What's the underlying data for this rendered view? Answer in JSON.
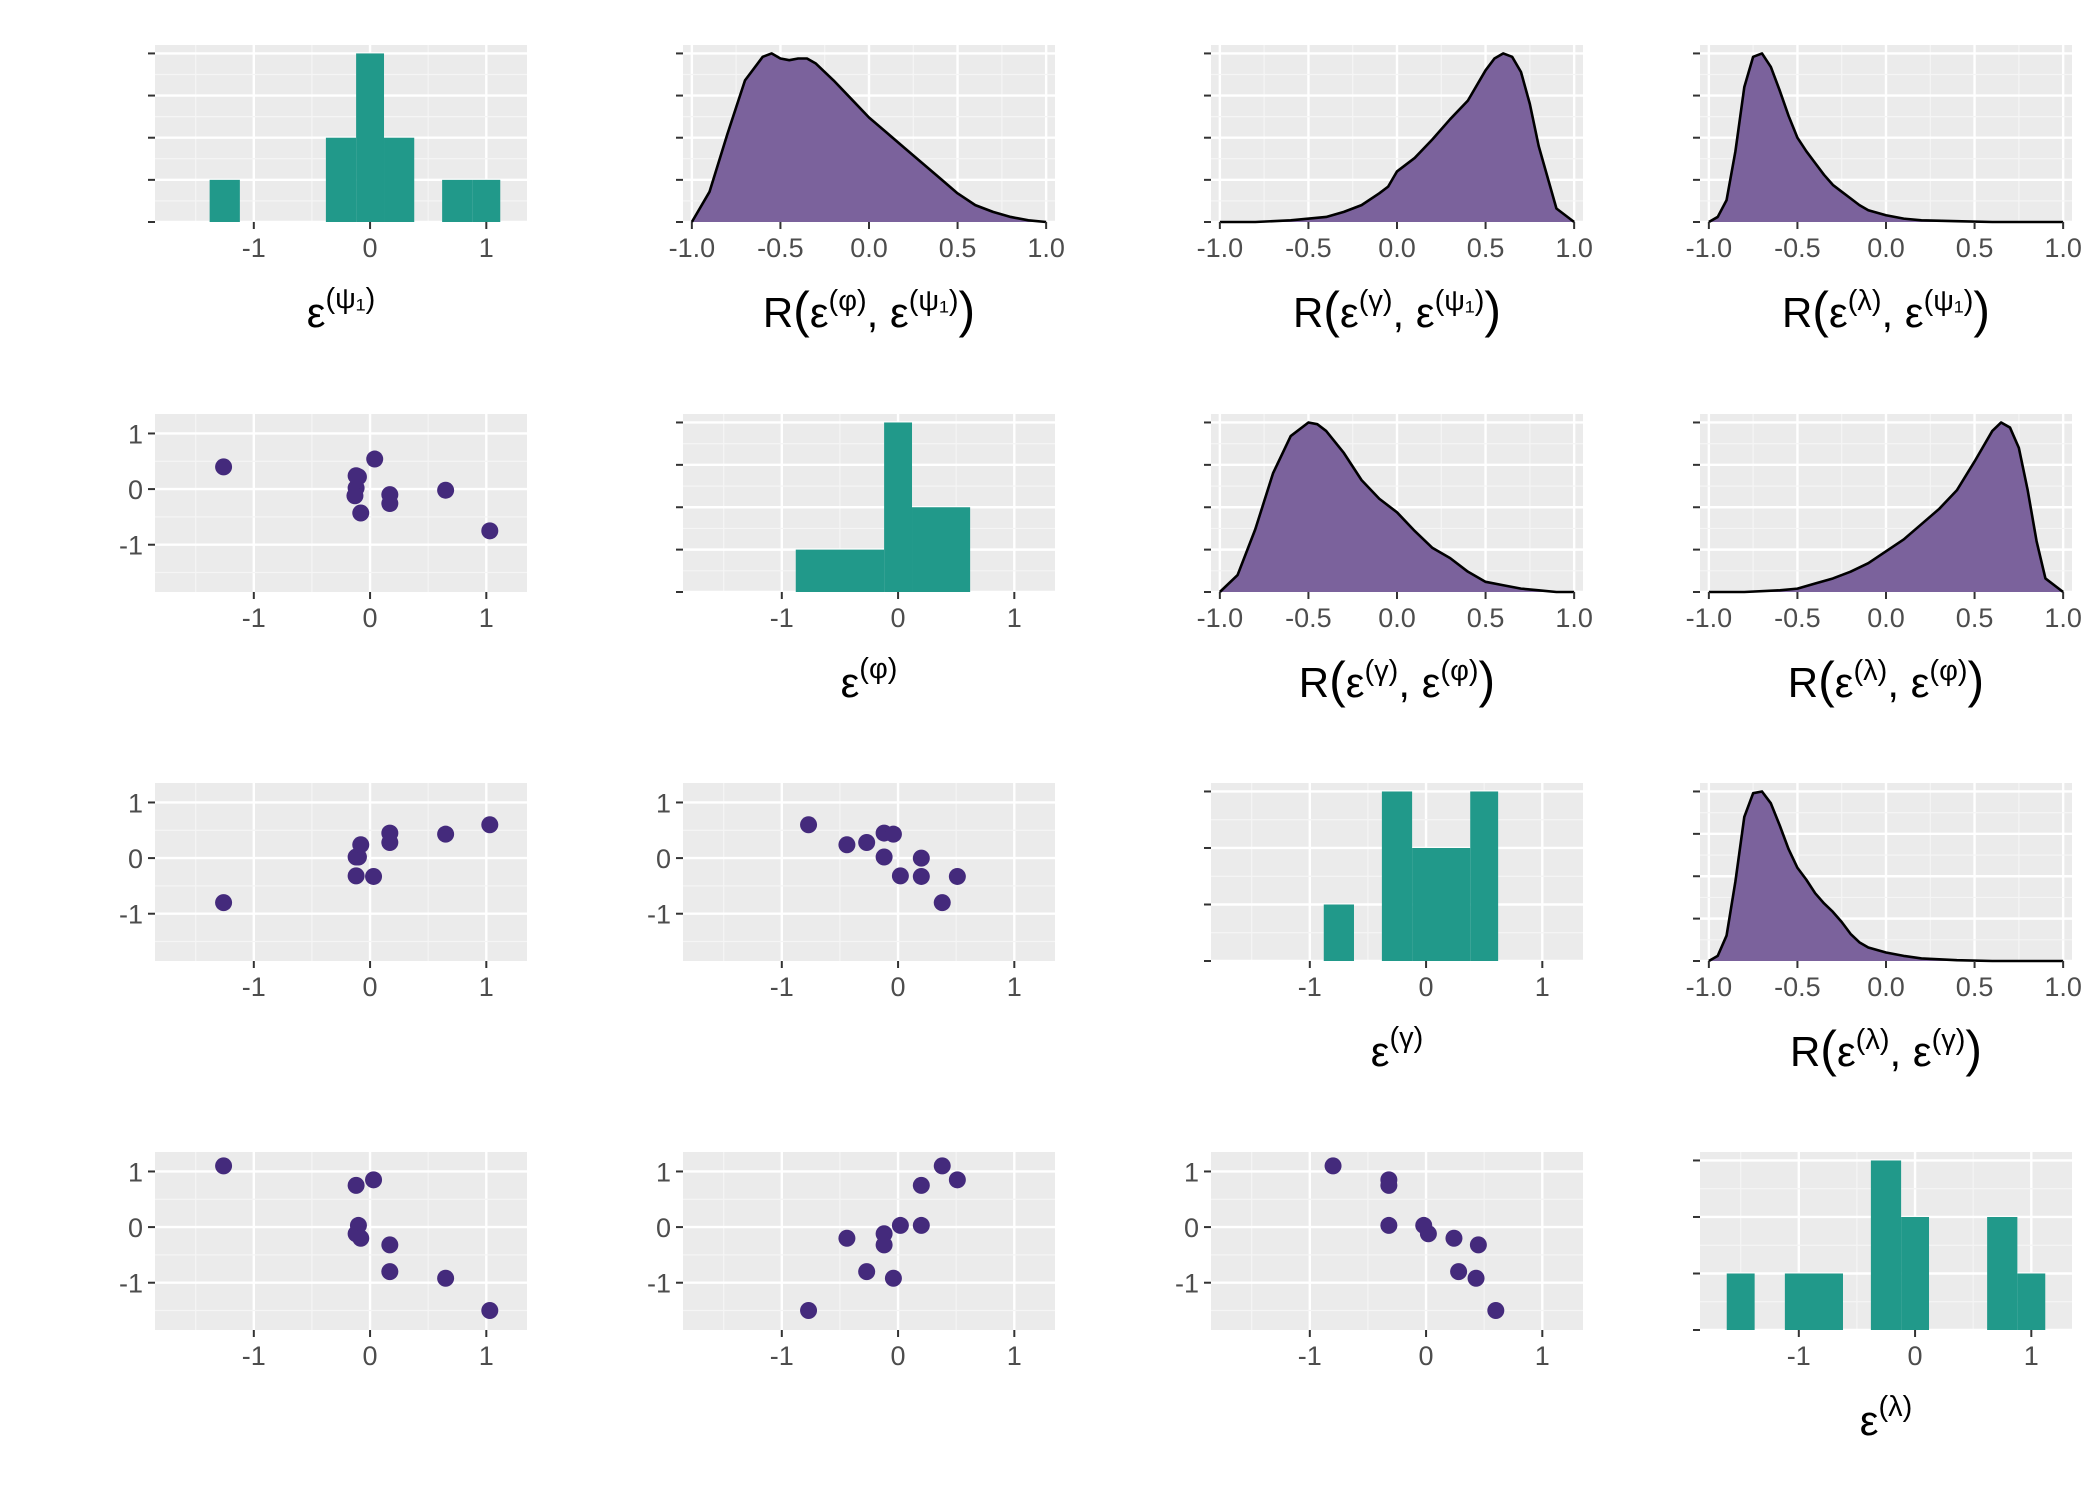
{
  "colors": {
    "panel_bg": "#ebebeb",
    "grid_major": "#ffffff",
    "grid_minor": "#f5f5f5",
    "hist_fill": "#21998a",
    "density_fill": "#7b629c",
    "density_line": "#000000",
    "point": "#442a7c",
    "tick_text": "#4d4d4d",
    "label_text": "#000000"
  },
  "chart_data": [
    {
      "type": "bar",
      "id": "hist-psi1",
      "row": 0,
      "col": 0,
      "xlabel": "ε^(ψ₁)",
      "xlabel_base": "ε",
      "xlabel_sup": "(ψ₁)",
      "xlim": [
        -1.85,
        1.35
      ],
      "x_ticks": [
        -1,
        0,
        1
      ],
      "ylim": [
        0,
        4.2
      ],
      "grid": true,
      "bins": [
        {
          "x0": -1.38,
          "x1": -1.12,
          "count": 1
        },
        {
          "x0": -0.38,
          "x1": -0.12,
          "count": 2
        },
        {
          "x0": -0.12,
          "x1": 0.12,
          "count": 4
        },
        {
          "x0": 0.12,
          "x1": 0.38,
          "count": 2
        },
        {
          "x0": 0.62,
          "x1": 0.88,
          "count": 1
        },
        {
          "x0": 0.88,
          "x1": 1.12,
          "count": 1
        }
      ]
    },
    {
      "type": "area",
      "id": "density-phi-psi1",
      "row": 0,
      "col": 1,
      "xlabel": "R(ε^(φ), ε^(ψ₁))",
      "xlabel_parts": [
        "R",
        "ε",
        "(φ)",
        "ε",
        "(ψ₁)"
      ],
      "xlim": [
        -1.05,
        1.05
      ],
      "x_ticks": [
        -1.0,
        -0.5,
        0.0,
        0.5,
        1.0
      ],
      "x_tick_labels": [
        "-1.0",
        "-0.5",
        "0.0",
        "0.5",
        "1.0"
      ],
      "ylim": [
        0,
        1.05
      ],
      "grid": true,
      "x": [
        -1.0,
        -0.9,
        -0.8,
        -0.7,
        -0.6,
        -0.55,
        -0.5,
        -0.45,
        -0.4,
        -0.35,
        -0.3,
        -0.2,
        -0.1,
        0.0,
        0.1,
        0.2,
        0.3,
        0.4,
        0.5,
        0.6,
        0.7,
        0.8,
        0.9,
        1.0
      ],
      "y": [
        0.0,
        0.18,
        0.52,
        0.84,
        0.98,
        1.0,
        0.97,
        0.96,
        0.97,
        0.97,
        0.94,
        0.84,
        0.73,
        0.62,
        0.53,
        0.44,
        0.35,
        0.26,
        0.17,
        0.1,
        0.06,
        0.03,
        0.01,
        0.0
      ]
    },
    {
      "type": "area",
      "id": "density-gamma-psi1",
      "row": 0,
      "col": 2,
      "xlabel": "R(ε^(γ), ε^(ψ₁))",
      "xlabel_parts": [
        "R",
        "ε",
        "(γ)",
        "ε",
        "(ψ₁)"
      ],
      "xlim": [
        -1.05,
        1.05
      ],
      "x_ticks": [
        -1.0,
        -0.5,
        0.0,
        0.5,
        1.0
      ],
      "x_tick_labels": [
        "-1.0",
        "-0.5",
        "0.0",
        "0.5",
        "1.0"
      ],
      "ylim": [
        0,
        1.05
      ],
      "grid": true,
      "x": [
        -1.0,
        -0.8,
        -0.6,
        -0.4,
        -0.3,
        -0.2,
        -0.1,
        -0.05,
        0.0,
        0.1,
        0.2,
        0.3,
        0.4,
        0.5,
        0.55,
        0.6,
        0.65,
        0.7,
        0.75,
        0.8,
        0.9,
        1.0
      ],
      "y": [
        0.0,
        0.0,
        0.01,
        0.03,
        0.06,
        0.1,
        0.17,
        0.21,
        0.3,
        0.38,
        0.49,
        0.61,
        0.72,
        0.9,
        0.97,
        1.0,
        0.98,
        0.89,
        0.7,
        0.45,
        0.08,
        0.0
      ]
    },
    {
      "type": "area",
      "id": "density-lambda-psi1",
      "row": 0,
      "col": 3,
      "xlabel": "R(ε^(λ), ε^(ψ₁))",
      "xlabel_parts": [
        "R",
        "ε",
        "(λ)",
        "ε",
        "(ψ₁)"
      ],
      "xlim": [
        -1.05,
        1.05
      ],
      "x_ticks": [
        -1.0,
        -0.5,
        0.0,
        0.5,
        1.0
      ],
      "x_tick_labels": [
        "-1.0",
        "-0.5",
        "0.0",
        "0.5",
        "1.0"
      ],
      "ylim": [
        0,
        1.05
      ],
      "grid": true,
      "x": [
        -1.0,
        -0.95,
        -0.9,
        -0.85,
        -0.8,
        -0.75,
        -0.7,
        -0.65,
        -0.6,
        -0.55,
        -0.5,
        -0.45,
        -0.4,
        -0.35,
        -0.3,
        -0.25,
        -0.2,
        -0.15,
        -0.1,
        0.0,
        0.1,
        0.2,
        0.4,
        0.6,
        0.8,
        1.0
      ],
      "y": [
        0.0,
        0.03,
        0.13,
        0.42,
        0.8,
        0.98,
        1.0,
        0.92,
        0.78,
        0.63,
        0.5,
        0.42,
        0.35,
        0.28,
        0.22,
        0.18,
        0.14,
        0.1,
        0.07,
        0.04,
        0.02,
        0.01,
        0.005,
        0.0,
        0.0,
        0.0
      ]
    },
    {
      "type": "scatter",
      "id": "scatter-psi1-phi",
      "row": 1,
      "col": 0,
      "xlim": [
        -1.85,
        1.35
      ],
      "ylim": [
        -1.85,
        1.35
      ],
      "x_ticks": [
        -1,
        0,
        1
      ],
      "y_ticks": [
        -1,
        0,
        1
      ],
      "grid": true,
      "points": [
        {
          "x": -1.26,
          "y": 0.4
        },
        {
          "x": -0.12,
          "y": 0.24
        },
        {
          "x": -0.1,
          "y": 0.22
        },
        {
          "x": -0.12,
          "y": 0.02
        },
        {
          "x": -0.13,
          "y": -0.12
        },
        {
          "x": -0.08,
          "y": -0.43
        },
        {
          "x": 0.04,
          "y": 0.54
        },
        {
          "x": 0.17,
          "y": -0.1
        },
        {
          "x": 0.17,
          "y": -0.26
        },
        {
          "x": 0.65,
          "y": -0.02
        },
        {
          "x": 1.03,
          "y": -0.75
        }
      ]
    },
    {
      "type": "bar",
      "id": "hist-phi",
      "row": 1,
      "col": 1,
      "xlabel": "ε^(φ)",
      "xlabel_base": "ε",
      "xlabel_sup": "(φ)",
      "xlim": [
        -1.85,
        1.35
      ],
      "x_ticks": [
        -1,
        0,
        1
      ],
      "ylim": [
        0,
        4.2
      ],
      "grid": true,
      "bins": [
        {
          "x0": -0.88,
          "x1": -0.12,
          "count": 1
        },
        {
          "x0": -0.12,
          "x1": 0.12,
          "count": 4
        },
        {
          "x0": 0.12,
          "x1": 0.62,
          "count": 2
        }
      ]
    },
    {
      "type": "area",
      "id": "density-gamma-phi",
      "row": 1,
      "col": 2,
      "xlabel": "R(ε^(γ), ε^(φ))",
      "xlabel_parts": [
        "R",
        "ε",
        "(γ)",
        "ε",
        "(φ)"
      ],
      "xlim": [
        -1.05,
        1.05
      ],
      "x_ticks": [
        -1.0,
        -0.5,
        0.0,
        0.5,
        1.0
      ],
      "x_tick_labels": [
        "-1.0",
        "-0.5",
        "0.0",
        "0.5",
        "1.0"
      ],
      "ylim": [
        0,
        1.05
      ],
      "grid": true,
      "x": [
        -1.0,
        -0.9,
        -0.8,
        -0.7,
        -0.6,
        -0.5,
        -0.45,
        -0.4,
        -0.3,
        -0.2,
        -0.1,
        0.0,
        0.1,
        0.2,
        0.3,
        0.4,
        0.5,
        0.6,
        0.7,
        0.8,
        0.9,
        1.0
      ],
      "y": [
        0.0,
        0.1,
        0.37,
        0.7,
        0.92,
        1.0,
        0.99,
        0.95,
        0.82,
        0.66,
        0.55,
        0.47,
        0.36,
        0.26,
        0.2,
        0.12,
        0.06,
        0.04,
        0.02,
        0.01,
        0.0,
        0.0
      ]
    },
    {
      "type": "area",
      "id": "density-lambda-phi",
      "row": 1,
      "col": 3,
      "xlabel": "R(ε^(λ), ε^(φ))",
      "xlabel_parts": [
        "R",
        "ε",
        "(λ)",
        "ε",
        "(φ)"
      ],
      "xlim": [
        -1.05,
        1.05
      ],
      "x_ticks": [
        -1.0,
        -0.5,
        0.0,
        0.5,
        1.0
      ],
      "x_tick_labels": [
        "-1.0",
        "-0.5",
        "0.0",
        "0.5",
        "1.0"
      ],
      "ylim": [
        0,
        1.05
      ],
      "grid": true,
      "x": [
        -1.0,
        -0.8,
        -0.6,
        -0.5,
        -0.4,
        -0.3,
        -0.2,
        -0.1,
        0.0,
        0.1,
        0.2,
        0.3,
        0.4,
        0.5,
        0.6,
        0.65,
        0.7,
        0.75,
        0.8,
        0.85,
        0.9,
        1.0
      ],
      "y": [
        0.0,
        0.0,
        0.01,
        0.02,
        0.05,
        0.08,
        0.12,
        0.17,
        0.24,
        0.31,
        0.4,
        0.49,
        0.6,
        0.77,
        0.95,
        1.0,
        0.97,
        0.85,
        0.6,
        0.3,
        0.08,
        0.0
      ]
    },
    {
      "type": "scatter",
      "id": "scatter-psi1-gamma",
      "row": 2,
      "col": 0,
      "xlim": [
        -1.85,
        1.35
      ],
      "ylim": [
        -1.85,
        1.35
      ],
      "x_ticks": [
        -1,
        0,
        1
      ],
      "y_ticks": [
        -1,
        0,
        1
      ],
      "grid": true,
      "points": [
        {
          "x": -1.26,
          "y": -0.8
        },
        {
          "x": -0.12,
          "y": 0.02
        },
        {
          "x": -0.1,
          "y": 0.02
        },
        {
          "x": -0.08,
          "y": 0.24
        },
        {
          "x": -0.12,
          "y": -0.32
        },
        {
          "x": 0.03,
          "y": -0.33
        },
        {
          "x": 0.17,
          "y": 0.45
        },
        {
          "x": 0.17,
          "y": 0.28
        },
        {
          "x": 0.65,
          "y": 0.43
        },
        {
          "x": 1.03,
          "y": 0.6
        }
      ]
    },
    {
      "type": "scatter",
      "id": "scatter-phi-gamma",
      "row": 2,
      "col": 1,
      "xlim": [
        -1.85,
        1.35
      ],
      "ylim": [
        -1.85,
        1.35
      ],
      "x_ticks": [
        -1,
        0,
        1
      ],
      "y_ticks": [
        -1,
        0,
        1
      ],
      "grid": true,
      "points": [
        {
          "x": -0.77,
          "y": 0.6
        },
        {
          "x": -0.44,
          "y": 0.24
        },
        {
          "x": -0.27,
          "y": 0.28
        },
        {
          "x": -0.12,
          "y": 0.45
        },
        {
          "x": -0.04,
          "y": 0.43
        },
        {
          "x": -0.12,
          "y": 0.02
        },
        {
          "x": 0.02,
          "y": -0.32
        },
        {
          "x": 0.2,
          "y": 0.0
        },
        {
          "x": 0.2,
          "y": -0.33
        },
        {
          "x": 0.38,
          "y": -0.8
        },
        {
          "x": 0.51,
          "y": -0.33
        }
      ]
    },
    {
      "type": "bar",
      "id": "hist-gamma",
      "row": 2,
      "col": 2,
      "xlabel": "ε^(γ)",
      "xlabel_base": "ε",
      "xlabel_sup": "(γ)",
      "xlim": [
        -1.85,
        1.35
      ],
      "x_ticks": [
        -1,
        0,
        1
      ],
      "ylim": [
        0,
        3.15
      ],
      "grid": true,
      "bins": [
        {
          "x0": -0.88,
          "x1": -0.62,
          "count": 1
        },
        {
          "x0": -0.38,
          "x1": -0.12,
          "count": 3
        },
        {
          "x0": -0.12,
          "x1": 0.38,
          "count": 2
        },
        {
          "x0": 0.38,
          "x1": 0.62,
          "count": 3
        }
      ]
    },
    {
      "type": "area",
      "id": "density-lambda-gamma",
      "row": 2,
      "col": 3,
      "xlabel": "R(ε^(λ), ε^(γ))",
      "xlabel_parts": [
        "R",
        "ε",
        "(λ)",
        "ε",
        "(γ)"
      ],
      "xlim": [
        -1.05,
        1.05
      ],
      "x_ticks": [
        -1.0,
        -0.5,
        0.0,
        0.5,
        1.0
      ],
      "x_tick_labels": [
        "-1.0",
        "-0.5",
        "0.0",
        "0.5",
        "1.0"
      ],
      "ylim": [
        0,
        1.05
      ],
      "grid": true,
      "x": [
        -1.0,
        -0.95,
        -0.9,
        -0.85,
        -0.8,
        -0.75,
        -0.7,
        -0.65,
        -0.6,
        -0.55,
        -0.5,
        -0.45,
        -0.4,
        -0.35,
        -0.3,
        -0.25,
        -0.2,
        -0.15,
        -0.1,
        0.0,
        0.1,
        0.2,
        0.4,
        0.6,
        0.8,
        1.0
      ],
      "y": [
        0.0,
        0.03,
        0.15,
        0.47,
        0.85,
        0.99,
        1.0,
        0.93,
        0.8,
        0.66,
        0.55,
        0.48,
        0.4,
        0.34,
        0.29,
        0.23,
        0.16,
        0.11,
        0.08,
        0.05,
        0.03,
        0.015,
        0.005,
        0.0,
        0.0,
        0.0
      ]
    },
    {
      "type": "scatter",
      "id": "scatter-psi1-lambda",
      "row": 3,
      "col": 0,
      "xlim": [
        -1.85,
        1.35
      ],
      "ylim": [
        -1.85,
        1.35
      ],
      "x_ticks": [
        -1,
        0,
        1
      ],
      "y_ticks": [
        -1,
        0,
        1
      ],
      "grid": true,
      "points": [
        {
          "x": -1.26,
          "y": 1.1
        },
        {
          "x": -0.12,
          "y": 0.75
        },
        {
          "x": 0.03,
          "y": 0.85
        },
        {
          "x": -0.1,
          "y": 0.03
        },
        {
          "x": -0.12,
          "y": -0.12
        },
        {
          "x": -0.08,
          "y": -0.2
        },
        {
          "x": 0.17,
          "y": -0.32
        },
        {
          "x": 0.17,
          "y": -0.8
        },
        {
          "x": 0.65,
          "y": -0.92
        },
        {
          "x": 1.03,
          "y": -1.5
        }
      ]
    },
    {
      "type": "scatter",
      "id": "scatter-phi-lambda",
      "row": 3,
      "col": 1,
      "xlim": [
        -1.85,
        1.35
      ],
      "ylim": [
        -1.85,
        1.35
      ],
      "x_ticks": [
        -1,
        0,
        1
      ],
      "y_ticks": [
        -1,
        0,
        1
      ],
      "grid": true,
      "points": [
        {
          "x": -0.77,
          "y": -1.5
        },
        {
          "x": -0.44,
          "y": -0.2
        },
        {
          "x": -0.27,
          "y": -0.8
        },
        {
          "x": -0.12,
          "y": -0.12
        },
        {
          "x": -0.12,
          "y": -0.32
        },
        {
          "x": -0.04,
          "y": -0.92
        },
        {
          "x": 0.02,
          "y": 0.03
        },
        {
          "x": 0.2,
          "y": 0.75
        },
        {
          "x": 0.2,
          "y": 0.03
        },
        {
          "x": 0.38,
          "y": 1.1
        },
        {
          "x": 0.51,
          "y": 0.85
        }
      ]
    },
    {
      "type": "scatter",
      "id": "scatter-gamma-lambda",
      "row": 3,
      "col": 2,
      "xlim": [
        -1.85,
        1.35
      ],
      "ylim": [
        -1.85,
        1.35
      ],
      "x_ticks": [
        -1,
        0,
        1
      ],
      "y_ticks": [
        -1,
        0,
        1
      ],
      "grid": true,
      "points": [
        {
          "x": -0.8,
          "y": 1.1
        },
        {
          "x": -0.32,
          "y": 0.85
        },
        {
          "x": -0.32,
          "y": 0.75
        },
        {
          "x": -0.32,
          "y": 0.03
        },
        {
          "x": -0.02,
          "y": 0.03
        },
        {
          "x": 0.02,
          "y": -0.12
        },
        {
          "x": 0.24,
          "y": -0.2
        },
        {
          "x": 0.28,
          "y": -0.8
        },
        {
          "x": 0.43,
          "y": -0.92
        },
        {
          "x": 0.45,
          "y": -0.32
        },
        {
          "x": 0.6,
          "y": -1.5
        }
      ]
    },
    {
      "type": "bar",
      "id": "hist-lambda",
      "row": 3,
      "col": 3,
      "xlabel": "ε^(λ)",
      "xlabel_base": "ε",
      "xlabel_sup": "(λ)",
      "xlim": [
        -1.85,
        1.35
      ],
      "x_ticks": [
        -1,
        0,
        1
      ],
      "ylim": [
        0,
        3.15
      ],
      "grid": true,
      "bins": [
        {
          "x0": -1.62,
          "x1": -1.38,
          "count": 1
        },
        {
          "x0": -1.12,
          "x1": -0.62,
          "count": 1
        },
        {
          "x0": -0.38,
          "x1": -0.12,
          "count": 3
        },
        {
          "x0": -0.12,
          "x1": 0.12,
          "count": 2
        },
        {
          "x0": 0.62,
          "x1": 0.88,
          "count": 2
        },
        {
          "x0": 0.88,
          "x1": 1.12,
          "count": 1
        }
      ]
    }
  ]
}
